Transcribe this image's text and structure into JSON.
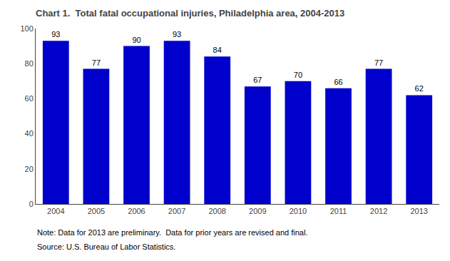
{
  "chart_data": {
    "type": "bar",
    "title": "Chart 1.  Total fatal occupational injuries, Philadelphia area, 2004-2013",
    "categories": [
      "2004",
      "2005",
      "2006",
      "2007",
      "2008",
      "2009",
      "2010",
      "2011",
      "2012",
      "2013"
    ],
    "values": [
      93,
      77,
      90,
      93,
      84,
      67,
      70,
      66,
      77,
      62
    ],
    "color": "#0000CC",
    "ylim": [
      0,
      100
    ],
    "yticks": [
      0,
      20,
      40,
      60,
      80,
      100
    ],
    "grid": false,
    "data_labels": true,
    "annotations": [
      "Note: Data for 2013 are preliminary.  Data for prior years are revised and final.",
      "Source: U.S. Bureau of Labor Statistics."
    ]
  }
}
